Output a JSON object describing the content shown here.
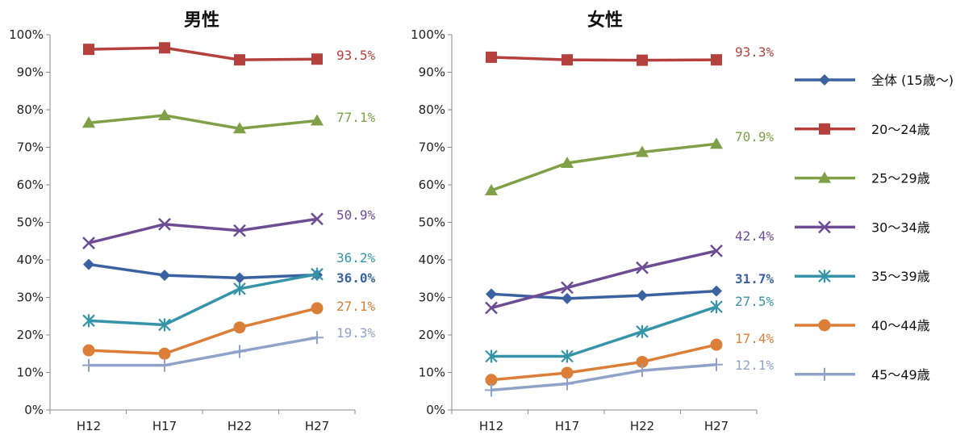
{
  "chart_data": [
    {
      "type": "line",
      "title": "男性",
      "categories": [
        "H12",
        "H17",
        "H22",
        "H27"
      ],
      "ylim": [
        0,
        100
      ],
      "y_ticks": [
        "0%",
        "10%",
        "20%",
        "30%",
        "40%",
        "50%",
        "60%",
        "70%",
        "80%",
        "90%",
        "100%"
      ],
      "grid": false,
      "series": [
        {
          "name": "全体 (15歳～)",
          "values": [
            38.8,
            35.9,
            35.2,
            36.0
          ],
          "color": "#3B62A0",
          "marker": "diamond",
          "end_label": "36.0%",
          "bold_label": true
        },
        {
          "name": "20～24歳",
          "values": [
            96.1,
            96.5,
            93.3,
            93.5
          ],
          "color": "#B5413E",
          "marker": "square",
          "end_label": "93.5%"
        },
        {
          "name": "25～29歳",
          "values": [
            76.5,
            78.5,
            75.0,
            77.1
          ],
          "color": "#7FA046",
          "marker": "triangle",
          "end_label": "77.1%"
        },
        {
          "name": "30～34歳",
          "values": [
            44.5,
            49.5,
            47.8,
            50.9
          ],
          "color": "#6D4C93",
          "marker": "x",
          "end_label": "50.9%"
        },
        {
          "name": "35～39歳",
          "values": [
            23.8,
            22.7,
            32.3,
            36.2
          ],
          "color": "#3594A7",
          "marker": "asterisk",
          "end_label": "36.2%"
        },
        {
          "name": "40～44歳",
          "values": [
            15.9,
            15.0,
            22.0,
            27.1
          ],
          "color": "#DB7F38",
          "marker": "circle",
          "end_label": "27.1%"
        },
        {
          "name": "45～49歳",
          "values": [
            11.9,
            11.9,
            15.6,
            19.3
          ],
          "color": "#8FA3C8",
          "marker": "plus",
          "end_label": "19.3%"
        }
      ]
    },
    {
      "type": "line",
      "title": "女性",
      "categories": [
        "H12",
        "H17",
        "H22",
        "H27"
      ],
      "ylim": [
        0,
        100
      ],
      "y_ticks": [
        "0%",
        "10%",
        "20%",
        "30%",
        "40%",
        "50%",
        "60%",
        "70%",
        "80%",
        "90%",
        "100%"
      ],
      "grid": false,
      "series": [
        {
          "name": "全体 (15歳～)",
          "values": [
            30.9,
            29.7,
            30.5,
            31.7
          ],
          "color": "#3B62A0",
          "marker": "diamond",
          "end_label": "31.7%",
          "bold_label": true
        },
        {
          "name": "20～24歳",
          "values": [
            94.0,
            93.3,
            93.2,
            93.3
          ],
          "color": "#B5413E",
          "marker": "square",
          "end_label": "93.3%"
        },
        {
          "name": "25～29歳",
          "values": [
            58.5,
            65.8,
            68.7,
            70.9
          ],
          "color": "#7FA046",
          "marker": "triangle",
          "end_label": "70.9%"
        },
        {
          "name": "30～34歳",
          "values": [
            27.2,
            32.6,
            37.9,
            42.4
          ],
          "color": "#6D4C93",
          "marker": "x",
          "end_label": "42.4%"
        },
        {
          "name": "35～39歳",
          "values": [
            14.3,
            14.3,
            20.9,
            27.5
          ],
          "color": "#3594A7",
          "marker": "asterisk",
          "end_label": "27.5%"
        },
        {
          "name": "40～44歳",
          "values": [
            8.0,
            9.9,
            12.8,
            17.4
          ],
          "color": "#DB7F38",
          "marker": "circle",
          "end_label": "17.4%"
        },
        {
          "name": "45～49歳",
          "values": [
            5.3,
            7.0,
            10.5,
            12.1
          ],
          "color": "#8FA3C8",
          "marker": "plus",
          "end_label": "12.1%"
        }
      ]
    }
  ],
  "legend": {
    "placement": "right",
    "items": [
      {
        "label": "全体 (15歳～)",
        "color": "#3B62A0",
        "marker": "diamond"
      },
      {
        "label": "20～24歳",
        "color": "#B5413E",
        "marker": "square"
      },
      {
        "label": "25～29歳",
        "color": "#7FA046",
        "marker": "triangle"
      },
      {
        "label": "30～34歳",
        "color": "#6D4C93",
        "marker": "x"
      },
      {
        "label": "35～39歳",
        "color": "#3594A7",
        "marker": "asterisk"
      },
      {
        "label": "40～44歳",
        "color": "#DB7F38",
        "marker": "circle"
      },
      {
        "label": "45～49歳",
        "color": "#8FA3C8",
        "marker": "plus"
      }
    ]
  }
}
